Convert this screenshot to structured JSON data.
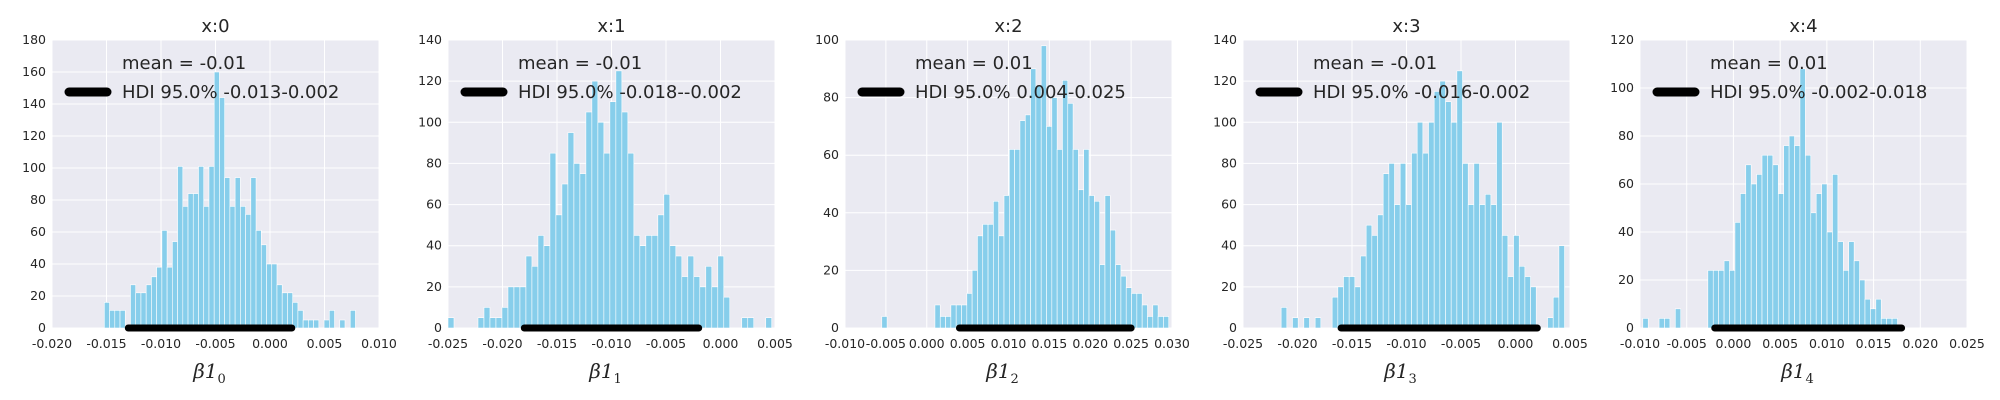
{
  "colors": {
    "background": "#EAEAF2",
    "grid": "#FFFFFF",
    "bar": "#87CEEB",
    "hdi": "#000000",
    "text": "#262626"
  },
  "chart_data": [
    {
      "type": "bar",
      "title": "x:0",
      "xlabel": "β1",
      "xlabel_sub": "0",
      "grid": true,
      "legend": {
        "position": "top-left",
        "mean_text": "mean = -0.01",
        "hdi_text": "HDI 95.0% -0.013-0.002"
      },
      "xlim": [
        -0.02,
        0.01
      ],
      "ylim": [
        0,
        180
      ],
      "xticks": [
        "-0.020",
        "-0.015",
        "-0.010",
        "-0.005",
        "0.000",
        "0.005",
        "0.010"
      ],
      "yticks": [
        "0",
        "20",
        "40",
        "60",
        "80",
        "100",
        "120",
        "140",
        "160",
        "180"
      ],
      "bin_start": -0.0152,
      "bin_width": 0.00048,
      "values": [
        16,
        11,
        11,
        11,
        0,
        27,
        22,
        22,
        27,
        32,
        38,
        61,
        38,
        54,
        101,
        76,
        84,
        84,
        101,
        76,
        101,
        160,
        144,
        94,
        76,
        94,
        76,
        71,
        94,
        61,
        52,
        40,
        40,
        27,
        22,
        22,
        16,
        11,
        5,
        5,
        5,
        0,
        5,
        11,
        0,
        5,
        0,
        11,
        0,
        0,
        0,
        0,
        0,
        5
      ],
      "hdi": [
        -0.013,
        0.002
      ]
    },
    {
      "type": "bar",
      "title": "x:1",
      "xlabel": "β1",
      "xlabel_sub": "1",
      "grid": true,
      "legend": {
        "position": "top-left",
        "mean_text": "mean = -0.01",
        "hdi_text": "HDI 95.0% -0.018--0.002"
      },
      "xlim": [
        -0.025,
        0.005
      ],
      "ylim": [
        0,
        140
      ],
      "xticks": [
        "-0.025",
        "-0.020",
        "-0.015",
        "-0.010",
        "-0.005",
        "0.000",
        "0.005"
      ],
      "yticks": [
        "0",
        "20",
        "40",
        "60",
        "80",
        "100",
        "120",
        "140"
      ],
      "bin_start": -0.025,
      "bin_width": 0.00055,
      "values": [
        5,
        0,
        0,
        0,
        0,
        5,
        10,
        5,
        5,
        10,
        20,
        20,
        20,
        35,
        30,
        45,
        40,
        85,
        55,
        70,
        95,
        80,
        75,
        105,
        120,
        100,
        85,
        110,
        125,
        105,
        85,
        45,
        40,
        45,
        45,
        55,
        65,
        40,
        35,
        25,
        35,
        25,
        20,
        30,
        20,
        35,
        15,
        0,
        0,
        5,
        5,
        0,
        0,
        5,
        0,
        0,
        5
      ],
      "hdi": [
        -0.018,
        -0.002
      ]
    },
    {
      "type": "bar",
      "title": "x:2",
      "xlabel": "β1",
      "xlabel_sub": "2",
      "grid": true,
      "legend": {
        "position": "top-left",
        "mean_text": "mean = 0.01",
        "hdi_text": "HDI 95.0% 0.004-0.025"
      },
      "xlim": [
        -0.01,
        0.03
      ],
      "ylim": [
        0,
        100
      ],
      "xticks": [
        "-0.010",
        "-0.005",
        "0.000",
        "0.005",
        "0.010",
        "0.015",
        "0.020",
        "0.025",
        "0.030"
      ],
      "yticks": [
        "0",
        "20",
        "40",
        "60",
        "80",
        "100"
      ],
      "bin_start": -0.0055,
      "bin_width": 0.00065,
      "values": [
        4,
        0,
        0,
        0,
        0,
        0,
        0,
        0,
        0,
        0,
        8,
        4,
        4,
        8,
        8,
        8,
        12,
        20,
        32,
        36,
        36,
        44,
        32,
        46,
        62,
        62,
        72,
        74,
        90,
        84,
        98,
        70,
        80,
        62,
        86,
        78,
        62,
        48,
        62,
        46,
        44,
        22,
        46,
        34,
        22,
        18,
        14,
        12,
        12,
        8,
        4,
        8,
        4,
        4
      ],
      "hdi": [
        0.004,
        0.025
      ]
    },
    {
      "type": "bar",
      "title": "x:3",
      "xlabel": "β1",
      "xlabel_sub": "3",
      "grid": true,
      "legend": {
        "position": "top-left",
        "mean_text": "mean = -0.01",
        "hdi_text": "HDI 95.0% -0.016-0.002"
      },
      "xlim": [
        -0.025,
        0.005
      ],
      "ylim": [
        0,
        140
      ],
      "xticks": [
        "-0.025",
        "-0.020",
        "-0.015",
        "-0.010",
        "-0.005",
        "0.000",
        "0.005"
      ],
      "yticks": [
        "0",
        "20",
        "40",
        "60",
        "80",
        "100",
        "120",
        "140"
      ],
      "bin_start": -0.0215,
      "bin_width": 0.00052,
      "values": [
        10,
        0,
        5,
        0,
        5,
        0,
        5,
        0,
        0,
        15,
        20,
        25,
        25,
        20,
        35,
        50,
        45,
        55,
        75,
        80,
        60,
        80,
        60,
        85,
        100,
        85,
        100,
        115,
        120,
        110,
        100,
        125,
        80,
        60,
        80,
        60,
        65,
        60,
        100,
        45,
        25,
        45,
        30,
        25,
        20,
        0,
        0,
        5,
        15,
        40,
        0,
        0,
        0,
        5,
        5,
        10
      ],
      "hdi": [
        -0.016,
        0.002
      ]
    },
    {
      "type": "bar",
      "title": "x:4",
      "xlabel": "β1",
      "xlabel_sub": "4",
      "grid": true,
      "legend": {
        "position": "top-left",
        "mean_text": "mean = 0.01",
        "hdi_text": "HDI 95.0% -0.002-0.018"
      },
      "xlim": [
        -0.01,
        0.025
      ],
      "ylim": [
        0,
        120
      ],
      "xticks": [
        "-0.010",
        "-0.005",
        "0.000",
        "0.005",
        "0.010",
        "0.015",
        "0.020",
        "0.025"
      ],
      "yticks": [
        "0",
        "20",
        "40",
        "60",
        "80",
        "100",
        "120"
      ],
      "bin_start": -0.0097,
      "bin_width": 0.00058,
      "values": [
        4,
        0,
        0,
        4,
        4,
        0,
        8,
        0,
        0,
        0,
        0,
        0,
        24,
        24,
        24,
        28,
        24,
        44,
        56,
        68,
        60,
        64,
        72,
        72,
        68,
        56,
        76,
        80,
        76,
        108,
        72,
        48,
        56,
        60,
        40,
        64,
        36,
        24,
        36,
        28,
        20,
        12,
        8,
        12,
        4,
        4,
        4
      ],
      "hdi": [
        -0.002,
        0.018
      ]
    }
  ]
}
